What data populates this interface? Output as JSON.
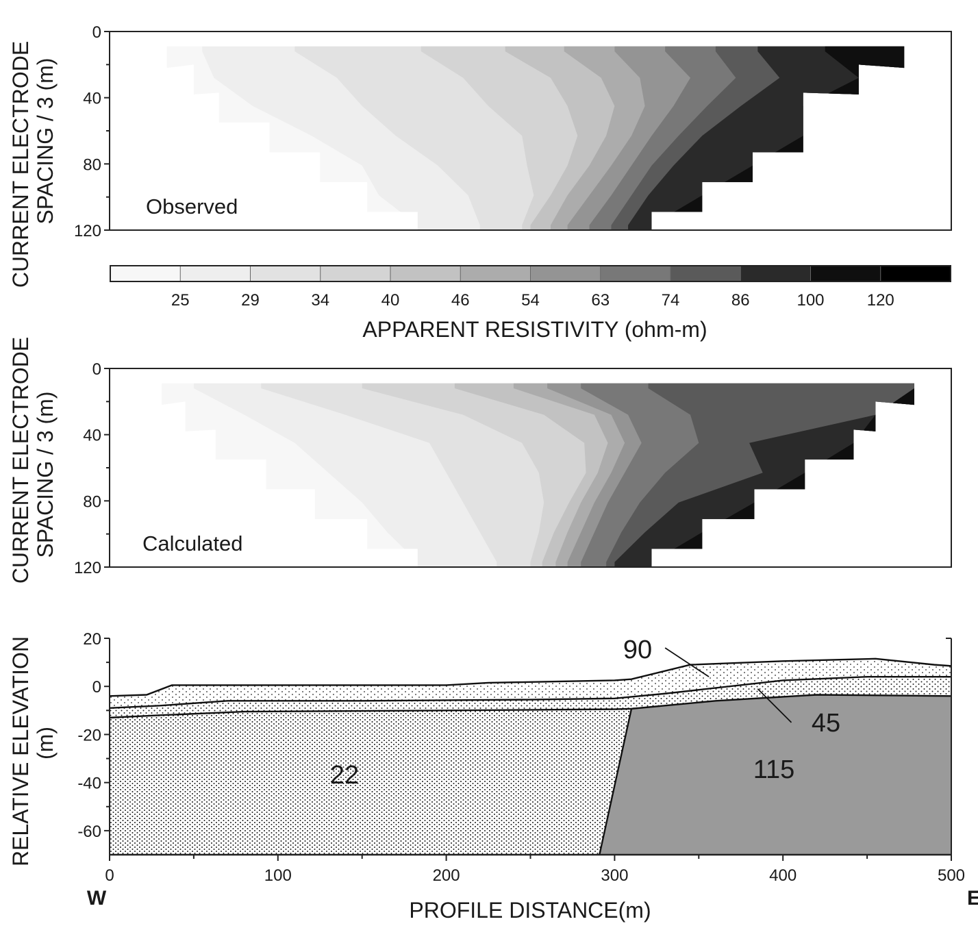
{
  "chart_data": [
    {
      "type": "heatmap",
      "panel_label": "Observed",
      "ylabel": [
        "CURRENT ELECTRODE",
        "SPACING / 3 (m)"
      ],
      "ylim": [
        0,
        120
      ],
      "yticks": [
        0,
        40,
        80,
        120
      ],
      "xlim": [
        0,
        500
      ],
      "depth_rows": [
        12,
        28,
        45,
        63,
        81,
        99,
        117
      ],
      "row_x_extent": [
        [
          34,
          472
        ],
        [
          50,
          445
        ],
        [
          65,
          412
        ],
        [
          95,
          412
        ],
        [
          125,
          382
        ],
        [
          153,
          352
        ],
        [
          183,
          322
        ]
      ],
      "boundaries_x": {
        "25": [
          [
            12,
            55
          ],
          [
            28,
            62
          ],
          [
            45,
            85
          ],
          [
            63,
            120
          ],
          [
            81,
            150
          ],
          [
            99,
            160
          ],
          [
            117,
            183
          ]
        ],
        "29": [
          [
            12,
            110
          ],
          [
            28,
            135
          ],
          [
            45,
            150
          ],
          [
            63,
            170
          ],
          [
            81,
            195
          ],
          [
            99,
            213
          ],
          [
            117,
            220
          ]
        ],
        "34": [
          [
            12,
            185
          ],
          [
            28,
            210
          ],
          [
            45,
            225
          ],
          [
            63,
            245
          ],
          [
            81,
            248
          ],
          [
            99,
            252
          ],
          [
            117,
            245
          ]
        ],
        "40": [
          [
            12,
            235
          ],
          [
            28,
            262
          ],
          [
            45,
            272
          ],
          [
            63,
            278
          ],
          [
            81,
            272
          ],
          [
            99,
            262
          ],
          [
            117,
            250
          ]
        ],
        "46": [
          [
            12,
            270
          ],
          [
            28,
            292
          ],
          [
            45,
            300
          ],
          [
            63,
            295
          ],
          [
            81,
            285
          ],
          [
            99,
            272
          ],
          [
            117,
            262
          ]
        ],
        "54": [
          [
            12,
            300
          ],
          [
            28,
            315
          ],
          [
            45,
            318
          ],
          [
            63,
            310
          ],
          [
            81,
            298
          ],
          [
            99,
            285
          ],
          [
            117,
            272
          ]
        ],
        "63": [
          [
            12,
            330
          ],
          [
            28,
            345
          ],
          [
            45,
            335
          ],
          [
            63,
            322
          ],
          [
            81,
            310
          ],
          [
            99,
            298
          ],
          [
            117,
            285
          ]
        ],
        "74": [
          [
            12,
            360
          ],
          [
            28,
            372
          ],
          [
            45,
            355
          ],
          [
            63,
            338
          ],
          [
            81,
            322
          ],
          [
            99,
            310
          ],
          [
            117,
            298
          ]
        ],
        "86": [
          [
            12,
            385
          ],
          [
            28,
            398
          ],
          [
            45,
            375
          ],
          [
            63,
            352
          ],
          [
            81,
            335
          ],
          [
            99,
            320
          ],
          [
            117,
            308
          ]
        ],
        "100": [
          [
            12,
            425
          ],
          [
            28,
            445
          ],
          [
            45,
            412
          ],
          [
            63,
            412
          ],
          [
            81,
            382
          ],
          [
            99,
            352
          ],
          [
            117,
            322
          ]
        ]
      }
    },
    {
      "type": "heatmap",
      "panel_label": "Calculated",
      "ylabel": [
        "CURRENT ELECTRODE",
        "SPACING / 3 (m)"
      ],
      "ylim": [
        0,
        120
      ],
      "yticks": [
        0,
        40,
        80,
        120
      ],
      "xlim": [
        0,
        500
      ],
      "depth_rows": [
        12,
        28,
        45,
        63,
        81,
        99,
        117
      ],
      "row_x_extent": [
        [
          31,
          478
        ],
        [
          45,
          455
        ],
        [
          63,
          442
        ],
        [
          93,
          413
        ],
        [
          122,
          383
        ],
        [
          153,
          352
        ],
        [
          183,
          322
        ]
      ],
      "boundaries_x": {
        "25": [
          [
            12,
            50
          ],
          [
            28,
            80
          ],
          [
            45,
            110
          ],
          [
            63,
            130
          ],
          [
            81,
            150
          ],
          [
            99,
            165
          ],
          [
            117,
            183
          ]
        ],
        "29": [
          [
            12,
            90
          ],
          [
            28,
            140
          ],
          [
            45,
            190
          ],
          [
            63,
            200
          ],
          [
            81,
            210
          ],
          [
            99,
            220
          ],
          [
            117,
            230
          ]
        ],
        "34": [
          [
            12,
            150
          ],
          [
            28,
            210
          ],
          [
            45,
            245
          ],
          [
            63,
            255
          ],
          [
            81,
            258
          ],
          [
            99,
            255
          ],
          [
            117,
            250
          ]
        ],
        "40": [
          [
            12,
            205
          ],
          [
            28,
            258
          ],
          [
            45,
            282
          ],
          [
            63,
            283
          ],
          [
            81,
            273
          ],
          [
            99,
            264
          ],
          [
            117,
            257
          ]
        ],
        "46": [
          [
            12,
            240
          ],
          [
            28,
            288
          ],
          [
            45,
            296
          ],
          [
            63,
            290
          ],
          [
            81,
            280
          ],
          [
            99,
            272
          ],
          [
            117,
            265
          ]
        ],
        "54": [
          [
            12,
            260
          ],
          [
            28,
            298
          ],
          [
            45,
            306
          ],
          [
            63,
            298
          ],
          [
            81,
            288
          ],
          [
            99,
            280
          ],
          [
            117,
            272
          ]
        ],
        "63": [
          [
            12,
            280
          ],
          [
            28,
            308
          ],
          [
            45,
            316
          ],
          [
            63,
            306
          ],
          [
            81,
            296
          ],
          [
            99,
            288
          ],
          [
            117,
            280
          ]
        ],
        "74": [
          [
            12,
            320
          ],
          [
            28,
            345
          ],
          [
            45,
            350
          ],
          [
            63,
            330
          ],
          [
            81,
            315
          ],
          [
            99,
            304
          ],
          [
            117,
            295
          ]
        ],
        "86": [
          [
            12,
            478
          ],
          [
            28,
            455
          ],
          [
            45,
            380
          ],
          [
            63,
            388
          ],
          [
            81,
            338
          ],
          [
            99,
            318
          ],
          [
            117,
            300
          ]
        ],
        "100": [
          [
            12,
            478
          ],
          [
            28,
            455
          ],
          [
            45,
            442
          ],
          [
            63,
            413
          ],
          [
            81,
            383
          ],
          [
            99,
            352
          ],
          [
            117,
            322
          ]
        ]
      }
    },
    {
      "type": "area",
      "ylabel": [
        "RELATIVE ELEVATION",
        "(m)"
      ],
      "xlabel": "PROFILE DISTANCE(m)",
      "xlim": [
        0,
        500
      ],
      "ylim": [
        -70,
        20
      ],
      "xticks": [
        0,
        100,
        200,
        300,
        400,
        500
      ],
      "yticks": [
        20,
        0,
        -20,
        -40,
        -60
      ],
      "direction_labels": [
        "W",
        "E"
      ],
      "surface": [
        [
          0,
          -4
        ],
        [
          22,
          -3.5
        ],
        [
          37,
          0.5
        ],
        [
          100,
          0.5
        ],
        [
          200,
          0.5
        ],
        [
          225,
          1.5
        ],
        [
          300,
          2.5
        ],
        [
          310,
          3
        ],
        [
          345,
          9
        ],
        [
          400,
          10.5
        ],
        [
          455,
          11.5
        ],
        [
          490,
          9
        ],
        [
          500,
          8.5
        ]
      ],
      "interface_1": [
        [
          0,
          -9
        ],
        [
          30,
          -8
        ],
        [
          70,
          -6
        ],
        [
          150,
          -6
        ],
        [
          250,
          -5.5
        ],
        [
          300,
          -5
        ],
        [
          330,
          -3
        ],
        [
          400,
          2.5
        ],
        [
          450,
          4
        ],
        [
          500,
          4
        ]
      ],
      "interface_2": [
        [
          0,
          -13
        ],
        [
          30,
          -12
        ],
        [
          80,
          -10.5
        ],
        [
          200,
          -10
        ],
        [
          300,
          -9.5
        ],
        [
          310,
          -9.3
        ],
        [
          360,
          -6
        ],
        [
          420,
          -3.5
        ],
        [
          500,
          -4
        ]
      ],
      "fault": [
        [
          310,
          -9.3
        ],
        [
          291,
          -70
        ]
      ],
      "units": [
        {
          "label": "90",
          "resistivity": 90,
          "texture": "sparse dots",
          "leader": [
            [
              330,
              16
            ],
            [
              356,
              4
            ]
          ]
        },
        {
          "label": "45",
          "resistivity": 45,
          "texture": "dots",
          "leader": [
            [
              405,
              -15
            ],
            [
              385,
              -1
            ]
          ]
        },
        {
          "label": "22",
          "resistivity": 22,
          "texture": "dense dots"
        },
        {
          "label": "115",
          "resistivity": 115,
          "texture": "solid gray"
        }
      ]
    }
  ],
  "colorbar": {
    "label": "APPARENT RESISTIVITY (ohm-m)",
    "ticks": [
      "25",
      "29",
      "34",
      "40",
      "46",
      "54",
      "63",
      "74",
      "86",
      "100",
      "120"
    ],
    "colors": [
      "#f7f7f7",
      "#eeeeee",
      "#e2e2e2",
      "#d4d4d4",
      "#c2c2c2",
      "#acacac",
      "#949494",
      "#787878",
      "#5a5a5a",
      "#2a2a2a",
      "#0f0f0f",
      "#000000"
    ]
  }
}
